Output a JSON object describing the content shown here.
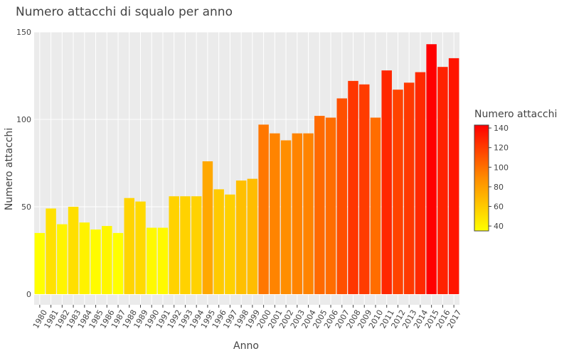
{
  "chart_data": {
    "type": "bar",
    "title": "Numero attacchi di squalo per anno",
    "xlabel": "Anno",
    "ylabel": "Numero attacchi",
    "ylim": [
      -5,
      150
    ],
    "y_ticks": [
      0,
      50,
      100,
      150
    ],
    "grid": true,
    "categories": [
      "1980",
      "1981",
      "1982",
      "1983",
      "1984",
      "1985",
      "1986",
      "1987",
      "1988",
      "1989",
      "1990",
      "1991",
      "1992",
      "1993",
      "1994",
      "1995",
      "1996",
      "1997",
      "1998",
      "1999",
      "2000",
      "2001",
      "2002",
      "2003",
      "2004",
      "2005",
      "2006",
      "2007",
      "2008",
      "2009",
      "2010",
      "2011",
      "2012",
      "2013",
      "2014",
      "2015",
      "2016",
      "2017"
    ],
    "values": [
      35,
      49,
      40,
      50,
      41,
      37,
      39,
      35,
      55,
      53,
      38,
      38,
      56,
      56,
      56,
      76,
      60,
      57,
      65,
      66,
      97,
      92,
      88,
      92,
      92,
      102,
      101,
      112,
      122,
      120,
      101,
      128,
      117,
      121,
      127,
      143,
      130,
      135
    ],
    "colorscale": {
      "title": "Numero attacchi",
      "min": 35,
      "max": 143,
      "ticks": [
        40,
        60,
        80,
        100,
        120,
        140
      ],
      "legend_position": "right",
      "colors": [
        "#ffff00",
        "#ff8c00",
        "#ff0000"
      ]
    }
  }
}
